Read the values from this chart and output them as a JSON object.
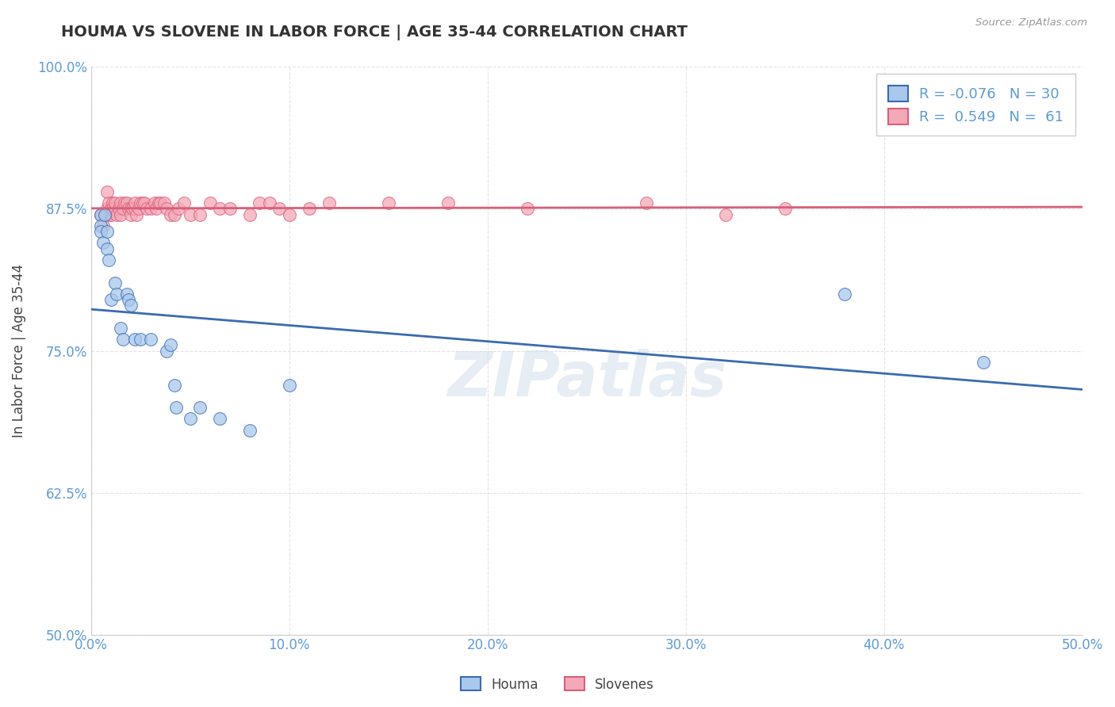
{
  "title": "HOUMA VS SLOVENE IN LABOR FORCE | AGE 35-44 CORRELATION CHART",
  "source_text": "Source: ZipAtlas.com",
  "ylabel": "In Labor Force | Age 35-44",
  "xlim": [
    0.0,
    0.5
  ],
  "ylim": [
    0.5,
    1.0
  ],
  "xticks": [
    0.0,
    0.1,
    0.2,
    0.3,
    0.4,
    0.5
  ],
  "xticklabels": [
    "0.0%",
    "10.0%",
    "20.0%",
    "30.0%",
    "40.0%",
    "50.0%"
  ],
  "yticks": [
    0.5,
    0.625,
    0.75,
    0.875,
    1.0
  ],
  "yticklabels": [
    "50.0%",
    "62.5%",
    "75.0%",
    "87.5%",
    "100.0%"
  ],
  "houma_color": "#A8C8EC",
  "slovene_color": "#F4A8B8",
  "houma_line_color": "#3B6BB0",
  "slovene_line_color": "#D95F79",
  "houma_R": -0.076,
  "houma_N": 30,
  "slovene_R": 0.549,
  "slovene_N": 61,
  "legend_label_houma": "Houma",
  "legend_label_slovene": "Slovenes",
  "watermark": "ZIPatlas",
  "houma_x": [
    0.005,
    0.005,
    0.005,
    0.006,
    0.007,
    0.008,
    0.008,
    0.009,
    0.01,
    0.012,
    0.013,
    0.015,
    0.016,
    0.018,
    0.019,
    0.02,
    0.022,
    0.025,
    0.03,
    0.038,
    0.04,
    0.042,
    0.043,
    0.05,
    0.055,
    0.065,
    0.08,
    0.1,
    0.38,
    0.45
  ],
  "houma_y": [
    0.87,
    0.86,
    0.855,
    0.845,
    0.87,
    0.855,
    0.84,
    0.83,
    0.795,
    0.81,
    0.8,
    0.77,
    0.76,
    0.8,
    0.795,
    0.79,
    0.76,
    0.76,
    0.76,
    0.75,
    0.755,
    0.72,
    0.7,
    0.69,
    0.7,
    0.69,
    0.68,
    0.72,
    0.8,
    0.74
  ],
  "slovene_x": [
    0.005,
    0.006,
    0.007,
    0.008,
    0.008,
    0.009,
    0.009,
    0.01,
    0.01,
    0.011,
    0.011,
    0.012,
    0.012,
    0.013,
    0.014,
    0.015,
    0.015,
    0.016,
    0.017,
    0.018,
    0.019,
    0.02,
    0.02,
    0.021,
    0.022,
    0.022,
    0.023,
    0.024,
    0.025,
    0.026,
    0.027,
    0.028,
    0.03,
    0.032,
    0.033,
    0.034,
    0.035,
    0.037,
    0.038,
    0.04,
    0.042,
    0.044,
    0.047,
    0.05,
    0.055,
    0.06,
    0.065,
    0.07,
    0.08,
    0.085,
    0.09,
    0.095,
    0.1,
    0.11,
    0.12,
    0.15,
    0.18,
    0.22,
    0.28,
    0.32,
    0.35
  ],
  "slovene_y": [
    0.87,
    0.86,
    0.87,
    0.875,
    0.89,
    0.87,
    0.88,
    0.87,
    0.875,
    0.88,
    0.875,
    0.875,
    0.88,
    0.87,
    0.875,
    0.88,
    0.87,
    0.875,
    0.88,
    0.88,
    0.875,
    0.875,
    0.87,
    0.875,
    0.875,
    0.88,
    0.87,
    0.875,
    0.88,
    0.88,
    0.88,
    0.875,
    0.875,
    0.88,
    0.875,
    0.88,
    0.88,
    0.88,
    0.875,
    0.87,
    0.87,
    0.875,
    0.88,
    0.87,
    0.87,
    0.88,
    0.875,
    0.875,
    0.87,
    0.88,
    0.88,
    0.875,
    0.87,
    0.875,
    0.88,
    0.88,
    0.88,
    0.875,
    0.88,
    0.87,
    0.875
  ]
}
